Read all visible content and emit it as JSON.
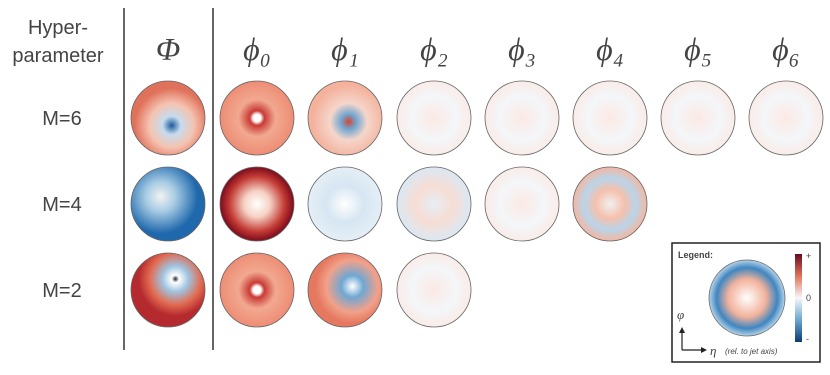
{
  "header": {
    "corner_label": [
      "Hyper-",
      "parameter"
    ],
    "columns": [
      "Φ",
      "ϕ₀",
      "ϕ₁",
      "ϕ₂",
      "ϕ₃",
      "ϕ₄",
      "ϕ₅",
      "ϕ₆"
    ]
  },
  "rows": [
    {
      "label": "M=6"
    },
    {
      "label": "M=4"
    },
    {
      "label": "M=2"
    }
  ],
  "legend": {
    "title": "Legend:",
    "plus": "+",
    "zero": "0",
    "minus": "-",
    "y_axis": "φ",
    "x_axis": "η",
    "x_note": "(rel. to jet axis)"
  }
}
